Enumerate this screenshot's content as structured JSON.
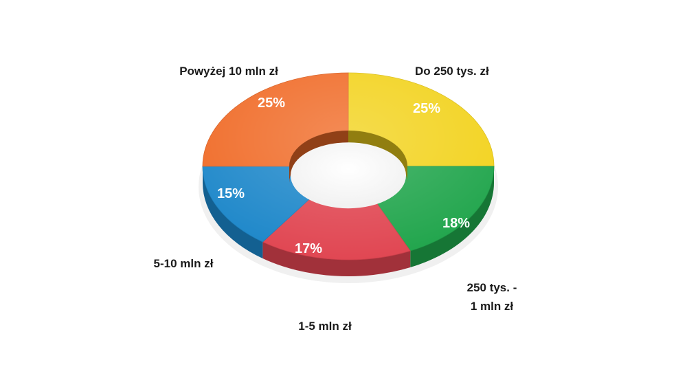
{
  "chart_data": {
    "type": "pie",
    "style": "3d-donut",
    "title": "",
    "slices": [
      {
        "label": "Do 250 tys. zł",
        "value": 25,
        "value_label": "25%",
        "color": "#f2d21a"
      },
      {
        "label": "250 tys. - 1 mln zł",
        "label_lines": [
          "250 tys. -",
          "1 mln zł"
        ],
        "value": 18,
        "value_label": "18%",
        "color": "#1ea44a"
      },
      {
        "label": "1-5 mln zł",
        "value": 17,
        "value_label": "17%",
        "color": "#e04450"
      },
      {
        "label": "5-10 mln zł",
        "value": 15,
        "value_label": "15%",
        "color": "#1b86c9"
      },
      {
        "label": "Powyżej 10 mln zł",
        "value": 25,
        "value_label": "25%",
        "color": "#f06a26"
      }
    ]
  }
}
